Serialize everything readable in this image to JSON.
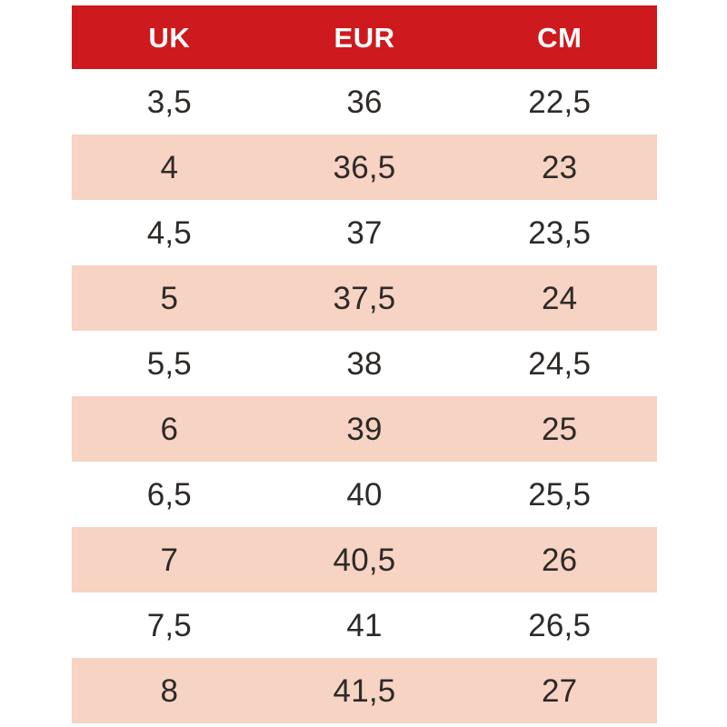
{
  "colors": {
    "header_bg": "#ce1a1e",
    "header_text": "#ffffff",
    "stripe_bg": "#f6d3c3",
    "row_bg": "#ffffff",
    "cell_text": "#2d2a28",
    "page_bg": "#ffffff"
  },
  "chart_data": {
    "type": "table",
    "columns": [
      "UK",
      "EUR",
      "CM"
    ],
    "rows": [
      [
        "3,5",
        "36",
        "22,5"
      ],
      [
        "4",
        "36,5",
        "23"
      ],
      [
        "4,5",
        "37",
        "23,5"
      ],
      [
        "5",
        "37,5",
        "24"
      ],
      [
        "5,5",
        "38",
        "24,5"
      ],
      [
        "6",
        "39",
        "25"
      ],
      [
        "6,5",
        "40",
        "25,5"
      ],
      [
        "7",
        "40,5",
        "26"
      ],
      [
        "7,5",
        "41",
        "26,5"
      ],
      [
        "8",
        "41,5",
        "27"
      ]
    ],
    "layout_hints": {
      "striped_row_indices": [
        1,
        3,
        5,
        7,
        9
      ],
      "columns_equal_width": true,
      "text_align": "center"
    }
  }
}
